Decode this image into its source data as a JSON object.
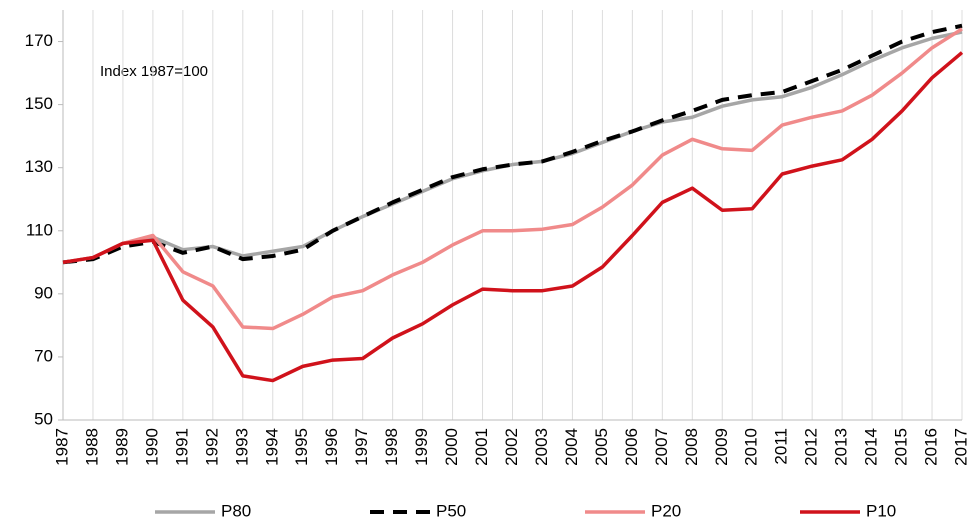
{
  "chart_data": {
    "type": "line",
    "annotation": "Index 1987=100",
    "categories": [
      "1987",
      "1988",
      "1989",
      "1990",
      "1991",
      "1992",
      "1993",
      "1994",
      "1995",
      "1996",
      "1997",
      "1998",
      "1999",
      "2000",
      "2001",
      "2002",
      "2003",
      "2004",
      "2005",
      "2006",
      "2007",
      "2008",
      "2009",
      "2010",
      "2011",
      "2012",
      "2013",
      "2014",
      "2015",
      "2016",
      "2017"
    ],
    "series": [
      {
        "name": "P80",
        "color": "#a6a6a6",
        "dash": false,
        "values": [
          100,
          101.5,
          106,
          108,
          104,
          105,
          102,
          103.5,
          105,
          110,
          114.5,
          118.5,
          122.5,
          126.5,
          129,
          131,
          132,
          134.5,
          138,
          141.5,
          144.5,
          146,
          149.5,
          151.5,
          152.5,
          155.5,
          159.5,
          164,
          168,
          171,
          173
        ]
      },
      {
        "name": "P50",
        "color": "#000000",
        "dash": true,
        "values": [
          100,
          101,
          105,
          106.5,
          103,
          105,
          101,
          102,
          104,
          110,
          114.5,
          119,
          123,
          127,
          129.5,
          131,
          132,
          135,
          138.5,
          141.5,
          145,
          148,
          151.5,
          153,
          154,
          157.5,
          161,
          165.5,
          170,
          173,
          175
        ]
      },
      {
        "name": "P20",
        "color": "#f08a8a",
        "dash": false,
        "values": [
          100,
          101.5,
          106,
          108.5,
          97,
          92.5,
          79.5,
          79,
          83.5,
          89,
          91,
          96,
          100,
          105.5,
          110,
          110,
          110.5,
          112,
          117.5,
          124.5,
          134,
          139,
          136,
          135.5,
          143.5,
          146,
          148,
          153,
          160,
          168,
          174
        ]
      },
      {
        "name": "P10",
        "color": "#d0121b",
        "dash": false,
        "values": [
          100,
          101.5,
          106,
          107,
          88,
          79.5,
          64,
          62.5,
          67,
          69,
          69.5,
          76,
          80.5,
          86.5,
          91.5,
          91,
          91,
          92.5,
          98.5,
          108.5,
          119,
          123.5,
          116.5,
          117,
          128,
          130.5,
          132.5,
          139,
          148,
          158.5,
          166.5
        ]
      }
    ],
    "ylim": [
      50,
      180
    ],
    "yticks": [
      50,
      70,
      90,
      110,
      130,
      150,
      170
    ],
    "grid": true
  }
}
